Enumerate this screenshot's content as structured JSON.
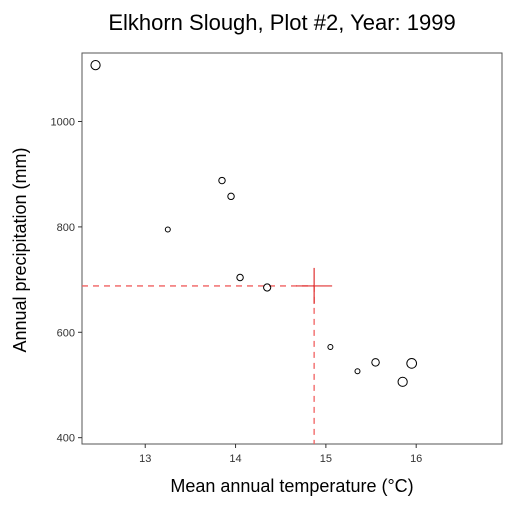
{
  "chart_data": {
    "type": "scatter",
    "title": "Elkhorn Slough, Plot #2, Year: 1999",
    "xlabel": "Mean annual temperature (°C)",
    "ylabel": "Annual precipitation (mm)",
    "xlim": [
      12.3,
      16.95
    ],
    "ylim": [
      388,
      1130
    ],
    "x_ticks": [
      13,
      14,
      15,
      16
    ],
    "y_ticks": [
      400,
      600,
      800,
      1000
    ],
    "grid": false,
    "points": [
      {
        "x": 12.45,
        "y": 1107,
        "size": 3.0
      },
      {
        "x": 13.25,
        "y": 795,
        "size": 0.6
      },
      {
        "x": 13.85,
        "y": 888,
        "size": 1.2
      },
      {
        "x": 13.95,
        "y": 858,
        "size": 1.2
      },
      {
        "x": 14.05,
        "y": 704,
        "size": 1.2
      },
      {
        "x": 14.35,
        "y": 685,
        "size": 1.6
      },
      {
        "x": 15.05,
        "y": 572,
        "size": 0.6
      },
      {
        "x": 15.35,
        "y": 526,
        "size": 0.6
      },
      {
        "x": 15.55,
        "y": 543,
        "size": 1.8
      },
      {
        "x": 15.85,
        "y": 506,
        "size": 3.0
      },
      {
        "x": 15.95,
        "y": 541,
        "size": 3.4
      }
    ],
    "reference": {
      "x": 14.87,
      "y": 688,
      "color": "#e03030"
    }
  }
}
